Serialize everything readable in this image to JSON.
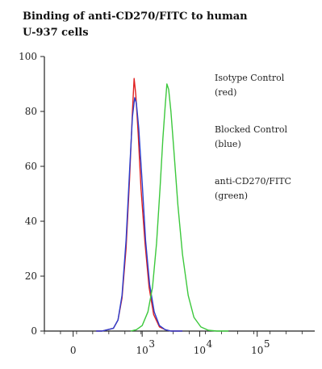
{
  "chart_data": {
    "type": "line",
    "title_lines": [
      "Binding of anti-CD270/FITC to human",
      "U-937 cells"
    ],
    "xlabel": "",
    "ylabel": "",
    "y_ticks": [
      0,
      20,
      40,
      60,
      80,
      100
    ],
    "y_tick_labels": [
      "0",
      "20",
      "40",
      "60",
      "80",
      "100"
    ],
    "ylim": [
      0,
      100
    ],
    "x_scale": "log",
    "x_ticks": [
      0,
      1000,
      10000,
      100000
    ],
    "x_tick_labels": [
      {
        "base": "0",
        "exp": ""
      },
      {
        "base": "10",
        "exp": "3"
      },
      {
        "base": "10",
        "exp": "4"
      },
      {
        "base": "10",
        "exp": "5"
      }
    ],
    "series": [
      {
        "name": "Isotype Control",
        "color": "#e02020",
        "points": [
          [
            -0.3,
            0
          ],
          [
            -0.2,
            0
          ],
          [
            -0.1,
            0.5
          ],
          [
            0.0,
            1
          ],
          [
            0.08,
            4
          ],
          [
            0.15,
            12
          ],
          [
            0.22,
            30
          ],
          [
            0.28,
            55
          ],
          [
            0.33,
            80
          ],
          [
            0.36,
            92
          ],
          [
            0.39,
            86
          ],
          [
            0.43,
            72
          ],
          [
            0.48,
            52
          ],
          [
            0.55,
            32
          ],
          [
            0.62,
            16
          ],
          [
            0.7,
            6
          ],
          [
            0.8,
            1.5
          ],
          [
            0.9,
            0.5
          ],
          [
            1.0,
            0
          ],
          [
            1.2,
            0
          ]
        ]
      },
      {
        "name": "Blocked Control",
        "color": "#2a3fd0",
        "points": [
          [
            -0.3,
            0
          ],
          [
            -0.2,
            0
          ],
          [
            -0.1,
            0.5
          ],
          [
            0.0,
            1
          ],
          [
            0.08,
            4
          ],
          [
            0.15,
            13
          ],
          [
            0.22,
            33
          ],
          [
            0.28,
            58
          ],
          [
            0.33,
            78
          ],
          [
            0.37,
            85
          ],
          [
            0.4,
            83
          ],
          [
            0.44,
            74
          ],
          [
            0.5,
            54
          ],
          [
            0.56,
            33
          ],
          [
            0.63,
            17
          ],
          [
            0.71,
            7
          ],
          [
            0.8,
            2
          ],
          [
            0.9,
            0.5
          ],
          [
            1.0,
            0
          ],
          [
            1.2,
            0
          ]
        ]
      },
      {
        "name": "anti-CD270/FITC",
        "color": "#3cc83c",
        "points": [
          [
            0.3,
            0
          ],
          [
            0.4,
            0.5
          ],
          [
            0.5,
            2
          ],
          [
            0.6,
            7
          ],
          [
            0.68,
            16
          ],
          [
            0.75,
            32
          ],
          [
            0.81,
            52
          ],
          [
            0.86,
            70
          ],
          [
            0.9,
            82
          ],
          [
            0.93,
            90
          ],
          [
            0.96,
            88
          ],
          [
            1.0,
            80
          ],
          [
            1.05,
            66
          ],
          [
            1.12,
            46
          ],
          [
            1.2,
            28
          ],
          [
            1.3,
            13
          ],
          [
            1.4,
            5
          ],
          [
            1.52,
            1.5
          ],
          [
            1.65,
            0.3
          ],
          [
            1.8,
            0
          ],
          [
            2.0,
            0
          ]
        ]
      }
    ],
    "legend": [
      {
        "label": "Isotype Control",
        "note": "(red)"
      },
      {
        "label": "Blocked Control",
        "note": "(blue)"
      },
      {
        "label": "anti-CD270/FITC",
        "note": "(green)"
      }
    ],
    "legend_position": "top-right",
    "grid": false,
    "colors": {
      "axis": "#222222",
      "text": "#222222"
    }
  }
}
